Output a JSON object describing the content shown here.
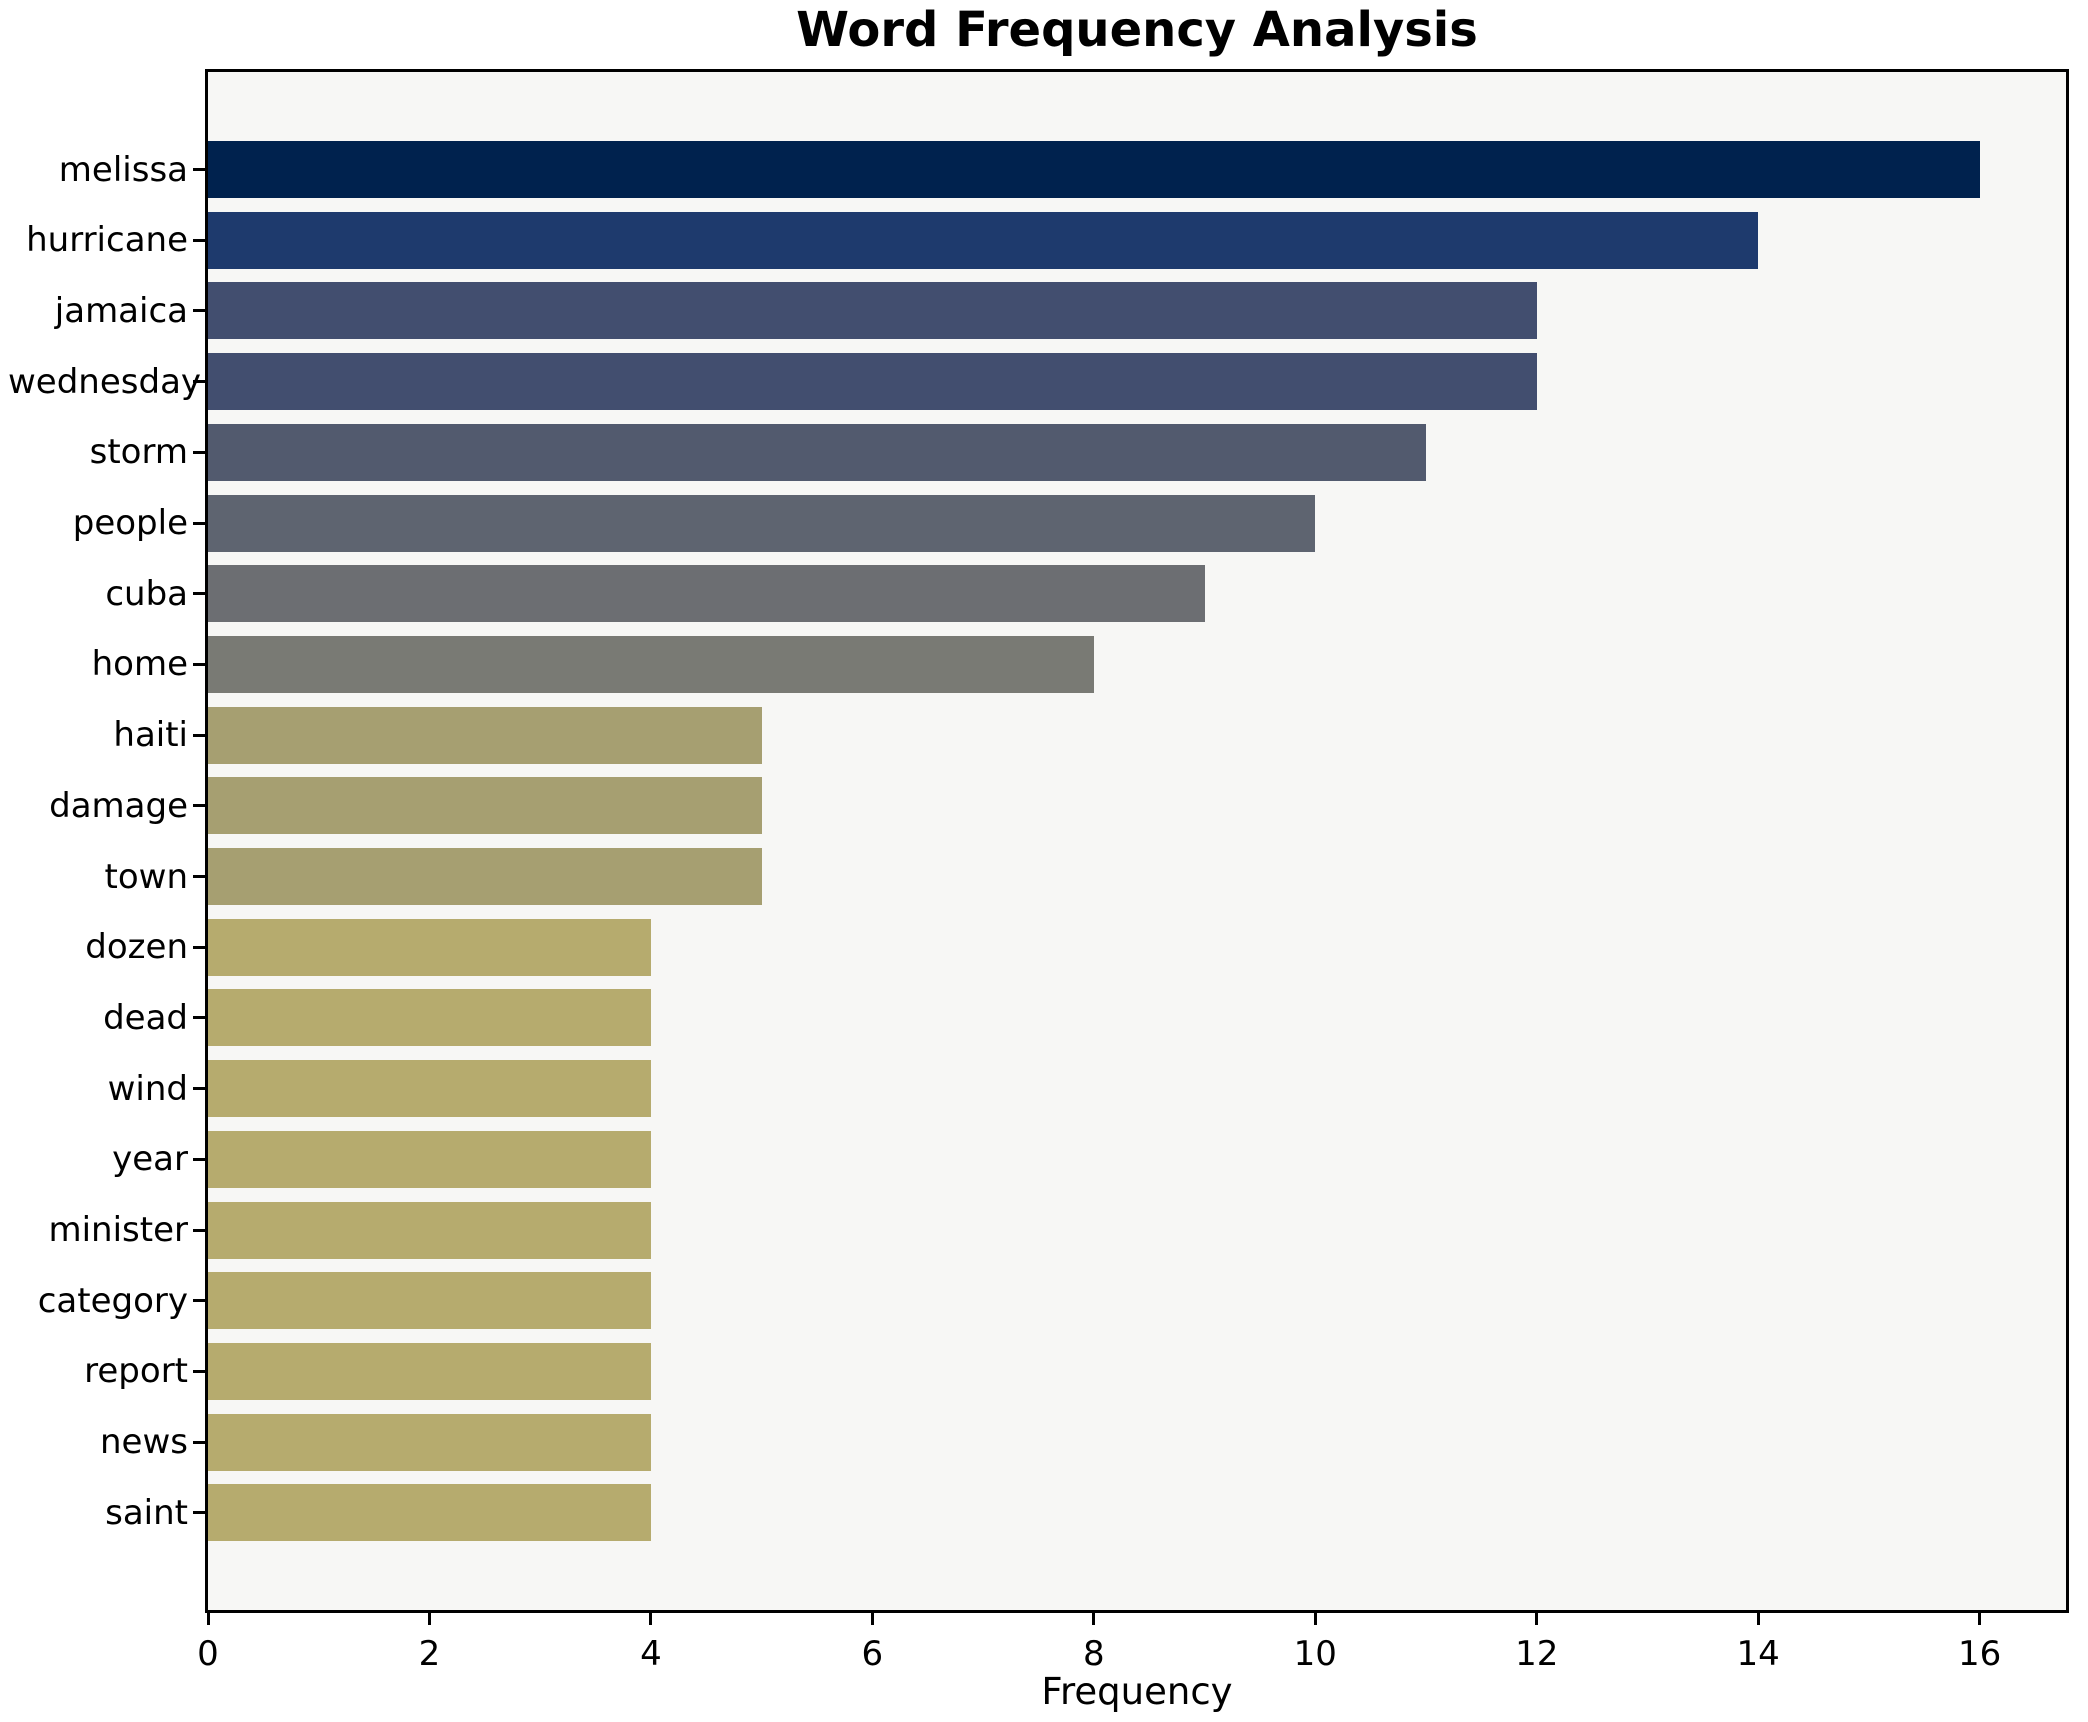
{
  "title": "Word Frequency Analysis",
  "chart_data": {
    "type": "bar",
    "orientation": "horizontal",
    "title": "Word Frequency Analysis",
    "xlabel": "Frequency",
    "ylabel": "",
    "xlim": [
      0,
      16.78
    ],
    "xticks": [
      0,
      2,
      4,
      6,
      8,
      10,
      12,
      14,
      16
    ],
    "grid": false,
    "legend": "none",
    "plot_background": "#f7f7f5",
    "spine_color": "#000000",
    "categories": [
      "melissa",
      "hurricane",
      "jamaica",
      "wednesday",
      "storm",
      "people",
      "cuba",
      "home",
      "haiti",
      "damage",
      "town",
      "dozen",
      "dead",
      "wind",
      "year",
      "minister",
      "category",
      "report",
      "news",
      "saint"
    ],
    "values": [
      16,
      14,
      12,
      12,
      11,
      10,
      9,
      8,
      5,
      5,
      5,
      4,
      4,
      4,
      4,
      4,
      4,
      4,
      4,
      4
    ],
    "bar_colors": [
      "#00224e",
      "#1e3a6d",
      "#424e6f",
      "#424e6f",
      "#525a6e",
      "#5e6470",
      "#6c6e72",
      "#797a74",
      "#a69f71",
      "#a69f71",
      "#a69f71",
      "#b6ab6e",
      "#b6ab6e",
      "#b6ab6e",
      "#b6ab6e",
      "#b6ab6e",
      "#b6ab6e",
      "#b6ab6e",
      "#b6ab6e",
      "#b6ab6e"
    ]
  }
}
